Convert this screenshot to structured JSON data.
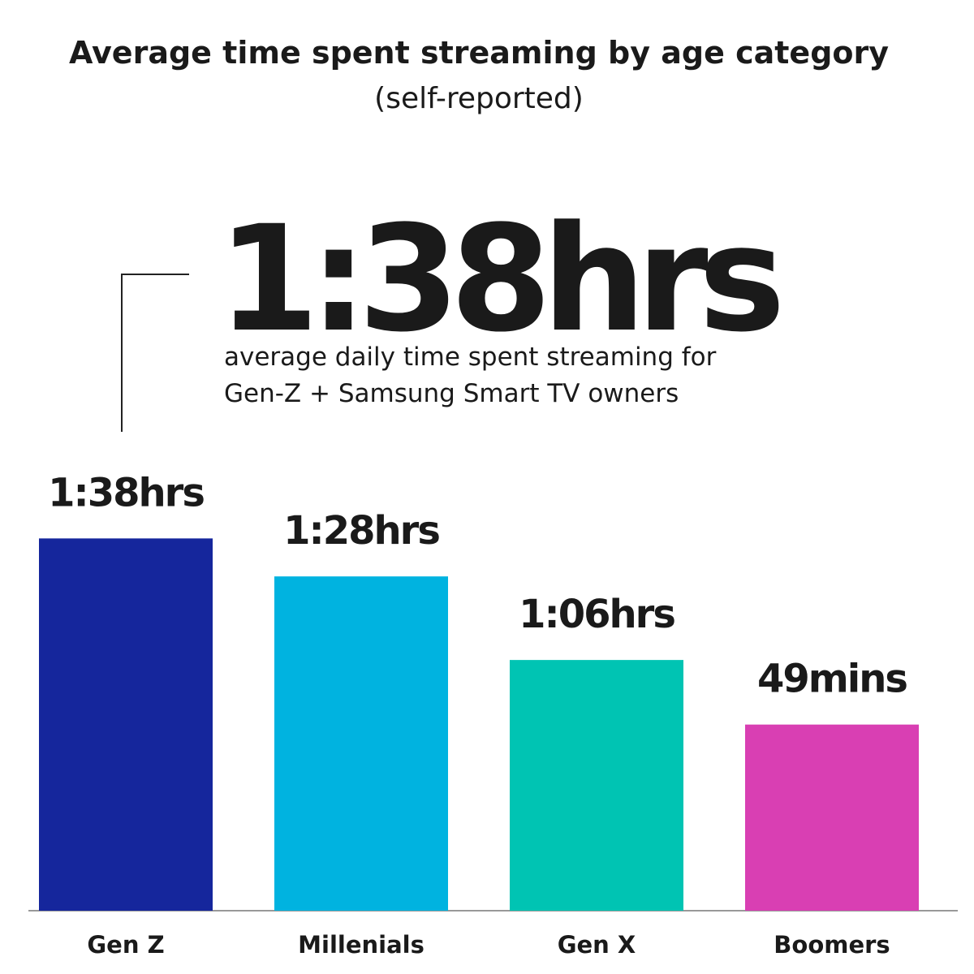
{
  "chart_data": {
    "type": "bar",
    "title": "Average time spent streaming by age category",
    "subtitle": "(self-reported)",
    "annotation": {
      "headline": "1:38hrs",
      "lines": [
        "average daily time spent streaming for",
        "Gen-Z + Samsung Smart TV owners"
      ]
    },
    "categories": [
      "Gen Z",
      "Millenials",
      "Gen X",
      "Boomers"
    ],
    "values": [
      98,
      88,
      66,
      49
    ],
    "value_labels": [
      "1:38hrs",
      "1:28hrs",
      "1:06hrs",
      "49mins"
    ],
    "colors": [
      "#15269c",
      "#00b3e0",
      "#00c4b3",
      "#d93fb3"
    ],
    "ylim": [
      0,
      100
    ]
  }
}
